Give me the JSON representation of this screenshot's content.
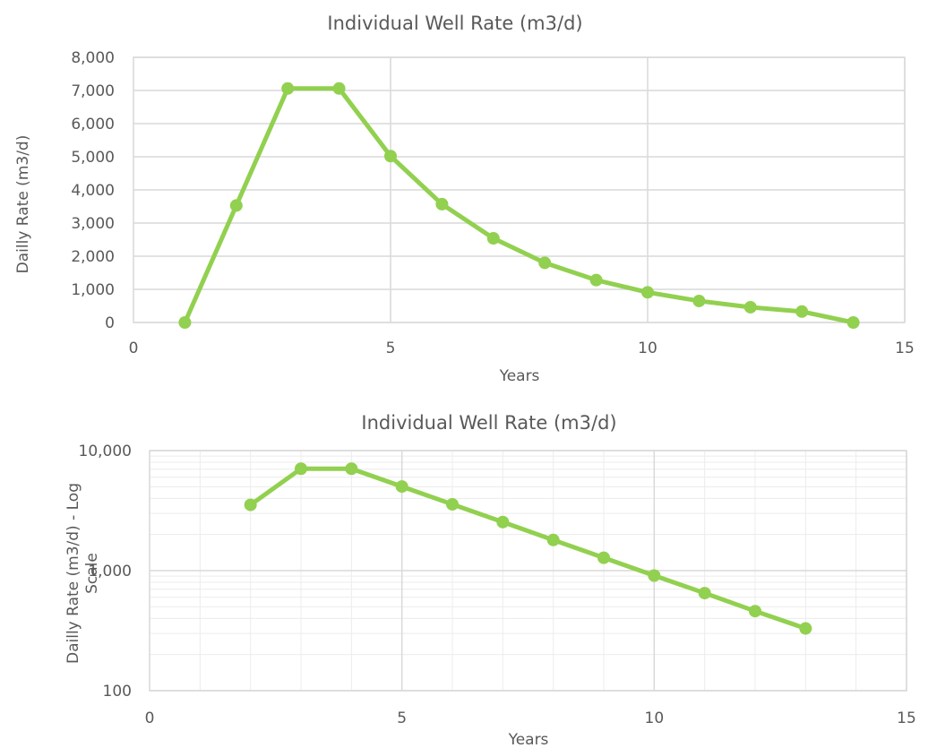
{
  "colors": {
    "series": "#92d050",
    "grid": "#d9d9d9",
    "text": "#595959"
  },
  "chart_data": [
    {
      "type": "scatter",
      "line": true,
      "markers": true,
      "title": "Individual Well Rate (m3/d)",
      "xlabel": "Years",
      "ylabel": "Dailly Rate (m3/d)",
      "xlim": [
        0,
        15
      ],
      "ylim": [
        0,
        8000
      ],
      "x_ticks": [
        "0",
        "5",
        "10",
        "15"
      ],
      "y_ticks": [
        "0",
        "1,000",
        "2,000",
        "3,000",
        "4,000",
        "5,000",
        "6,000",
        "7,000",
        "8,000"
      ],
      "y_scale": "linear",
      "grid": true,
      "x": [
        1,
        2,
        3,
        4,
        5,
        6,
        7,
        8,
        9,
        10,
        11,
        12,
        13,
        14
      ],
      "y": [
        0,
        3530,
        7060,
        7060,
        5020,
        3570,
        2540,
        1800,
        1280,
        910,
        650,
        460,
        330,
        0
      ]
    },
    {
      "type": "scatter",
      "line": true,
      "markers": true,
      "title": "Individual Well Rate (m3/d)",
      "xlabel": "Years",
      "ylabel": "Dailly Rate (m3/d) - Log Scale",
      "xlim": [
        0,
        15
      ],
      "ylim": [
        100,
        10000
      ],
      "x_ticks": [
        "0",
        "5",
        "10",
        "15"
      ],
      "y_ticks": [
        "100",
        "1,000",
        "10,000"
      ],
      "y_scale": "log",
      "grid": true,
      "x": [
        2,
        3,
        4,
        5,
        6,
        7,
        8,
        9,
        10,
        11,
        12,
        13
      ],
      "y": [
        3530,
        7060,
        7060,
        5020,
        3570,
        2540,
        1800,
        1280,
        910,
        650,
        460,
        330
      ]
    }
  ]
}
